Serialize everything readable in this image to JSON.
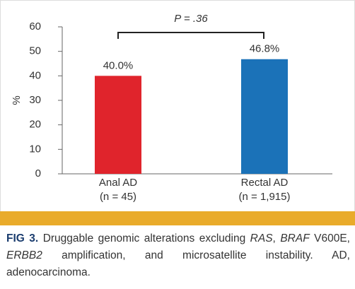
{
  "chart_data": {
    "type": "bar",
    "annotation": "P = .36",
    "ylabel": "%",
    "categories": [
      "Anal AD",
      "Rectal AD"
    ],
    "category_notes": [
      "(n = 45)",
      "(n = 1,915)"
    ],
    "values": [
      40.0,
      46.8
    ],
    "value_labels": [
      "40.0%",
      "46.8%"
    ],
    "colors": [
      "#e0242c",
      "#1b72b8"
    ],
    "ylim": [
      0,
      60
    ],
    "yticks": [
      0,
      10,
      20,
      30,
      40,
      50,
      60
    ]
  },
  "caption": {
    "label": "FIG 3.",
    "parts": [
      " Druggable genomic alterations excluding ",
      "RAS",
      ", ",
      "BRAF",
      " V600E, ",
      "ERBB2",
      " amplification, and microsatellite instability. AD, adenocarcinoma."
    ]
  }
}
